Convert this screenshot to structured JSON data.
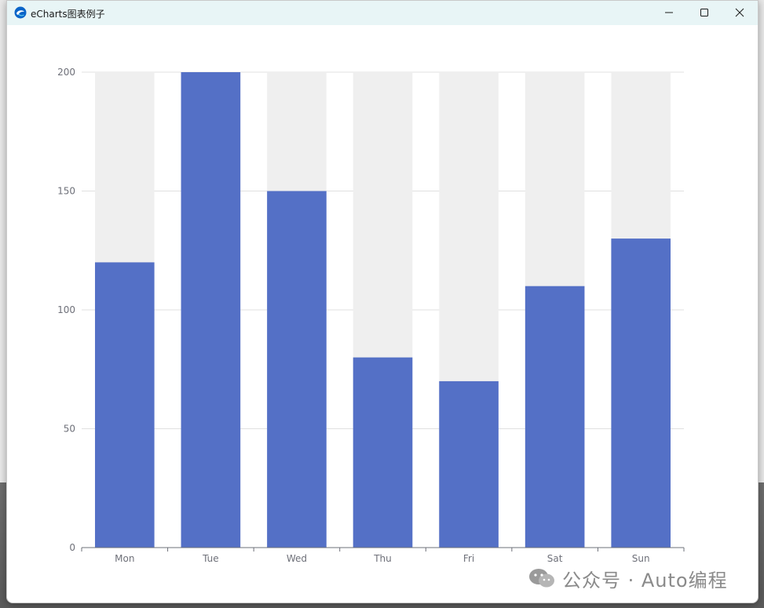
{
  "window": {
    "title": "eCharts图表例子",
    "app_icon": "edge-browser-icon",
    "controls": {
      "minimize": "minimize-icon",
      "maximize": "maximize-icon",
      "close": "close-icon"
    }
  },
  "chart_data": {
    "type": "bar",
    "categories": [
      "Mon",
      "Tue",
      "Wed",
      "Thu",
      "Fri",
      "Sat",
      "Sun"
    ],
    "values": [
      120,
      200,
      150,
      80,
      70,
      110,
      130
    ],
    "show_background": true,
    "ylim": [
      0,
      200
    ],
    "yticks": [
      0,
      50,
      100,
      150,
      200
    ],
    "grid": true,
    "title": "",
    "xlabel": "",
    "ylabel": "",
    "colors": {
      "bar": "#5470c6",
      "background": "#efefef",
      "grid": "#e0e0e0",
      "axis": "#6e7079",
      "label": "#6e7079"
    }
  },
  "watermark": {
    "text": "公众号 · Auto编程",
    "icon": "wechat-icon"
  }
}
